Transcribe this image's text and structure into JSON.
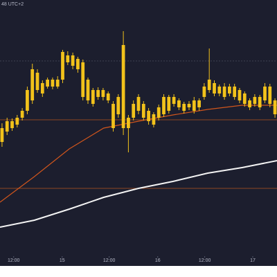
{
  "chart_data": {
    "type": "candlestick",
    "note_text": "48 UTC+2",
    "ylim": [
      0,
      360
    ],
    "xlim": [
      -0.4,
      54.4
    ],
    "candle_color": "#f2c21b",
    "open": [
      165,
      180,
      195,
      190,
      200,
      210,
      225,
      265,
      250,
      245,
      255,
      245,
      255,
      290,
      290,
      285,
      280,
      255,
      240,
      230,
      240,
      235,
      220,
      205,
      185,
      200,
      200,
      210,
      220,
      210,
      205,
      200,
      205,
      230,
      220,
      225,
      220,
      215,
      210,
      225,
      230,
      240,
      250,
      245,
      230,
      245,
      230,
      240,
      235,
      225,
      220,
      230,
      225,
      245,
      225
    ],
    "high": [
      192,
      200,
      199,
      204,
      214,
      245,
      278,
      270,
      254,
      258,
      258,
      260,
      298,
      296,
      294,
      288,
      284,
      258,
      243,
      244,
      243,
      238,
      224,
      234,
      325,
      204,
      225,
      234,
      224,
      214,
      208,
      219,
      234,
      233,
      234,
      228,
      223,
      224,
      230,
      228,
      250,
      300,
      254,
      248,
      250,
      249,
      249,
      243,
      238,
      228,
      234,
      233,
      250,
      249,
      228
    ],
    "low": [
      158,
      175,
      181,
      186,
      196,
      205,
      220,
      236,
      230,
      242,
      241,
      242,
      250,
      276,
      270,
      265,
      225,
      220,
      216,
      226,
      225,
      221,
      180,
      200,
      175,
      150,
      196,
      205,
      196,
      190,
      186,
      196,
      201,
      206,
      216,
      211,
      206,
      211,
      206,
      210,
      226,
      236,
      231,
      231,
      226,
      231,
      226,
      221,
      216,
      211,
      216,
      211,
      221,
      215,
      200
    ],
    "close": [
      185,
      195,
      185,
      200,
      210,
      240,
      270,
      240,
      235,
      255,
      245,
      255,
      295,
      280,
      275,
      270,
      230,
      225,
      220,
      240,
      230,
      225,
      185,
      230,
      305,
      185,
      220,
      230,
      200,
      195,
      190,
      215,
      230,
      210,
      230,
      215,
      210,
      220,
      225,
      215,
      245,
      255,
      235,
      235,
      245,
      235,
      245,
      225,
      220,
      215,
      230,
      215,
      245,
      220,
      205
    ],
    "lines": [
      {
        "color": "#d2561c",
        "x": [
          -0.4,
          6.4,
          13.3,
          20.1,
          27,
          33.8,
          40.7,
          47.5,
          54.4
        ],
        "values": [
          78,
          115,
          155,
          185,
          195,
          204,
          212,
          218,
          218
        ]
      },
      {
        "color": "#f4f4f4",
        "x": [
          -0.4,
          6.4,
          13.3,
          20.1,
          27,
          33.8,
          40.7,
          47.5,
          54.4
        ],
        "values": [
          42,
          52,
          68,
          85,
          98,
          108,
          120,
          128,
          138
        ]
      }
    ],
    "hlines": [
      {
        "value": 197,
        "color": "#b5561f"
      },
      {
        "value": 98,
        "color": "#b5561f"
      },
      {
        "value": 282,
        "color": "#4a4e60"
      }
    ],
    "xticks": [
      {
        "value": 2.3,
        "label": "12:00"
      },
      {
        "value": 11.9,
        "label": "15"
      },
      {
        "value": 21.2,
        "label": "12:00"
      },
      {
        "value": 30.8,
        "label": "16"
      },
      {
        "value": 40.1,
        "label": "12:00"
      },
      {
        "value": 49.6,
        "label": "17"
      }
    ]
  }
}
